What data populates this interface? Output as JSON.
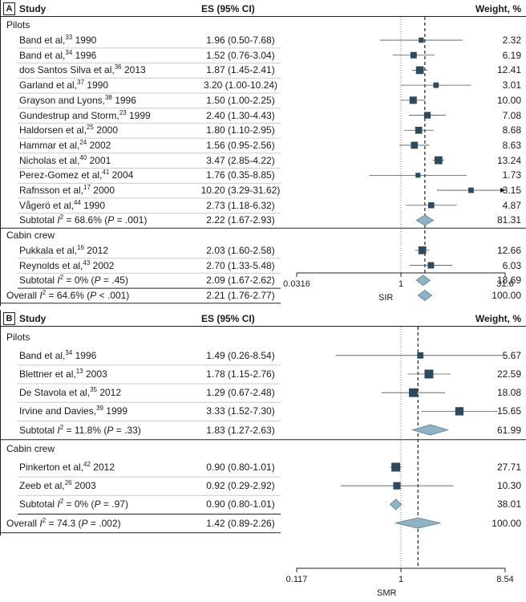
{
  "chart_data": [
    {
      "panel": "A",
      "type": "forest",
      "headers": {
        "study": "Study",
        "es": "ES (95% CI)",
        "weight": "Weight, %"
      },
      "xlabel": "SIR",
      "axis": {
        "scale": "log",
        "ticks": [
          "0.0316",
          "1",
          "31.6"
        ],
        "tick_values": [
          0.0316,
          1,
          31.6
        ]
      },
      "null_line": 1,
      "overall_line": 2.21,
      "rows": [
        {
          "kind": "group",
          "name": "Pilots"
        },
        {
          "kind": "study",
          "name": "Band et al,",
          "ref": "33",
          "year": "1990",
          "es_text": "1.96 (0.50-7.68)",
          "es": 1.96,
          "lo": 0.5,
          "hi": 7.68,
          "weight": "2.32"
        },
        {
          "kind": "study",
          "name": "Band et al,",
          "ref": "34",
          "year": "1996",
          "es_text": "1.52 (0.76-3.04)",
          "es": 1.52,
          "lo": 0.76,
          "hi": 3.04,
          "weight": "6.19"
        },
        {
          "kind": "study",
          "name": "dos Santos Silva et al,",
          "ref": "36",
          "year": "2013",
          "es_text": "1.87 (1.45-2.41)",
          "es": 1.87,
          "lo": 1.45,
          "hi": 2.41,
          "weight": "12.41"
        },
        {
          "kind": "study",
          "name": "Garland et al,",
          "ref": "37",
          "year": "1990",
          "es_text": "3.20 (1.00-10.24)",
          "es": 3.2,
          "lo": 1.0,
          "hi": 10.24,
          "weight": "3.01"
        },
        {
          "kind": "study",
          "name": "Grayson and Lyons,",
          "ref": "38",
          "year": "1996",
          "es_text": "1.50 (1.00-2.25)",
          "es": 1.5,
          "lo": 1.0,
          "hi": 2.25,
          "weight": "10.00"
        },
        {
          "kind": "study",
          "name": "Gundestrup and Storm,",
          "ref": "23",
          "year": "1999",
          "es_text": "2.40 (1.30-4.43)",
          "es": 2.4,
          "lo": 1.3,
          "hi": 4.43,
          "weight": "7.08"
        },
        {
          "kind": "study",
          "name": "Haldorsen et al,",
          "ref": "25",
          "year": "2000",
          "es_text": "1.80 (1.10-2.95)",
          "es": 1.8,
          "lo": 1.1,
          "hi": 2.95,
          "weight": "8.68"
        },
        {
          "kind": "study",
          "name": "Hammar et al,",
          "ref": "24",
          "year": "2002",
          "es_text": "1.56 (0.95-2.56)",
          "es": 1.56,
          "lo": 0.95,
          "hi": 2.56,
          "weight": "8.63"
        },
        {
          "kind": "study",
          "name": "Nicholas et al,",
          "ref": "40",
          "year": "2001",
          "es_text": "3.47 (2.85-4.22)",
          "es": 3.47,
          "lo": 2.85,
          "hi": 4.22,
          "weight": "13.24"
        },
        {
          "kind": "study",
          "name": "Perez-Gomez et al,",
          "ref": "41",
          "year": "2004",
          "es_text": "1.76 (0.35-8.85)",
          "es": 1.76,
          "lo": 0.35,
          "hi": 8.85,
          "weight": "1.73"
        },
        {
          "kind": "study",
          "name": "Rafnsson et al,",
          "ref": "17",
          "year": "2000",
          "es_text": "10.20 (3.29-31.62)",
          "es": 10.2,
          "lo": 3.29,
          "hi": 31.62,
          "weight": "3.15",
          "arrow": true
        },
        {
          "kind": "study",
          "name": "Vågerö et al,",
          "ref": "44",
          "year": "1990",
          "es_text": "2.73 (1.18-6.32)",
          "es": 2.73,
          "lo": 1.18,
          "hi": 6.32,
          "weight": "4.87"
        },
        {
          "kind": "subtotal",
          "label": "Subtotal",
          "i2": "68.6%",
          "p": ".001",
          "p_op": "=",
          "es_text": "2.22 (1.67-2.93)",
          "es": 2.22,
          "lo": 1.67,
          "hi": 2.93,
          "weight": "81.31"
        },
        {
          "kind": "group",
          "name": "Cabin crew"
        },
        {
          "kind": "study",
          "name": "Pukkala et al,",
          "ref": "16",
          "year": "2012",
          "es_text": "2.03 (1.60-2.58)",
          "es": 2.03,
          "lo": 1.6,
          "hi": 2.58,
          "weight": "12.66"
        },
        {
          "kind": "study",
          "name": "Reynolds et al,",
          "ref": "43",
          "year": "2002",
          "es_text": "2.70 (1.33-5.48)",
          "es": 2.7,
          "lo": 1.33,
          "hi": 5.48,
          "weight": "6.03"
        },
        {
          "kind": "subtotal",
          "label": "Subtotal",
          "i2": "0%",
          "p": ".45",
          "p_op": "=",
          "es_text": "2.09 (1.67-2.62)",
          "es": 2.09,
          "lo": 1.67,
          "hi": 2.62,
          "weight": "18.69"
        },
        {
          "kind": "overall",
          "label": "Overall",
          "i2": "64.6%",
          "p": ".001",
          "p_op": "<",
          "es_text": "2.21 (1.76-2.77)",
          "es": 2.21,
          "lo": 1.76,
          "hi": 2.77,
          "weight": "100.00"
        }
      ]
    },
    {
      "panel": "B",
      "type": "forest",
      "headers": {
        "study": "Study",
        "es": "ES (95% CI)",
        "weight": "Weight, %"
      },
      "xlabel": "SMR",
      "axis": {
        "scale": "log",
        "ticks": [
          "0.117",
          "1",
          "8.54"
        ],
        "tick_values": [
          0.117,
          1,
          8.54
        ]
      },
      "null_line": 1,
      "overall_line": 1.42,
      "rows": [
        {
          "kind": "group",
          "name": "Pilots"
        },
        {
          "kind": "study",
          "name": "Band et al,",
          "ref": "34",
          "year": "1996",
          "es_text": "1.49 (0.26-8.54)",
          "es": 1.49,
          "lo": 0.26,
          "hi": 8.54,
          "weight": "5.67"
        },
        {
          "kind": "study",
          "name": "Blettner et al,",
          "ref": "13",
          "year": "2003",
          "es_text": "1.78 (1.15-2.76)",
          "es": 1.78,
          "lo": 1.15,
          "hi": 2.76,
          "weight": "22.59"
        },
        {
          "kind": "study",
          "name": "De Stavola et al,",
          "ref": "35",
          "year": "2012",
          "es_text": "1.29 (0.67-2.48)",
          "es": 1.29,
          "lo": 0.67,
          "hi": 2.48,
          "weight": "18.08"
        },
        {
          "kind": "study",
          "name": "Irvine and Davies,",
          "ref": "39",
          "year": "1999",
          "es_text": "3.33 (1.52-7.30)",
          "es": 3.33,
          "lo": 1.52,
          "hi": 7.3,
          "weight": "15.65"
        },
        {
          "kind": "subtotal",
          "label": "Subtotal",
          "i2": "11.8%",
          "p": ".33",
          "p_op": "=",
          "es_text": "1.83 (1.27-2.63)",
          "es": 1.83,
          "lo": 1.27,
          "hi": 2.63,
          "weight": "61.99"
        },
        {
          "kind": "group",
          "name": "Cabin crew"
        },
        {
          "kind": "study",
          "name": "Pinkerton et al,",
          "ref": "42",
          "year": "2012",
          "es_text": "0.90 (0.80-1.01)",
          "es": 0.9,
          "lo": 0.8,
          "hi": 1.01,
          "weight": "27.71"
        },
        {
          "kind": "study",
          "name": "Zeeb et al,",
          "ref": "26",
          "year": "2003",
          "es_text": "0.92 (0.29-2.92)",
          "es": 0.92,
          "lo": 0.29,
          "hi": 2.92,
          "weight": "10.30"
        },
        {
          "kind": "subtotal",
          "label": "Subtotal",
          "i2": "0%",
          "p": ".97",
          "p_op": "=",
          "es_text": "0.90 (0.80-1.01)",
          "es": 0.9,
          "lo": 0.8,
          "hi": 1.01,
          "weight": "38.01"
        },
        {
          "kind": "overall",
          "label": "Overall",
          "i2": "74.3",
          "p": ".002",
          "p_op": "=",
          "es_text": "1.42 (0.89-2.26)",
          "es": 1.42,
          "lo": 0.89,
          "hi": 2.26,
          "weight": "100.00"
        }
      ]
    }
  ],
  "colors": {
    "marker": "#2e4a5c",
    "diamond": "#8fb3c2",
    "diamond_stroke": "#5c7f8f",
    "line": "#222222",
    "dotted": "#888888",
    "divider": "#cccccc"
  }
}
